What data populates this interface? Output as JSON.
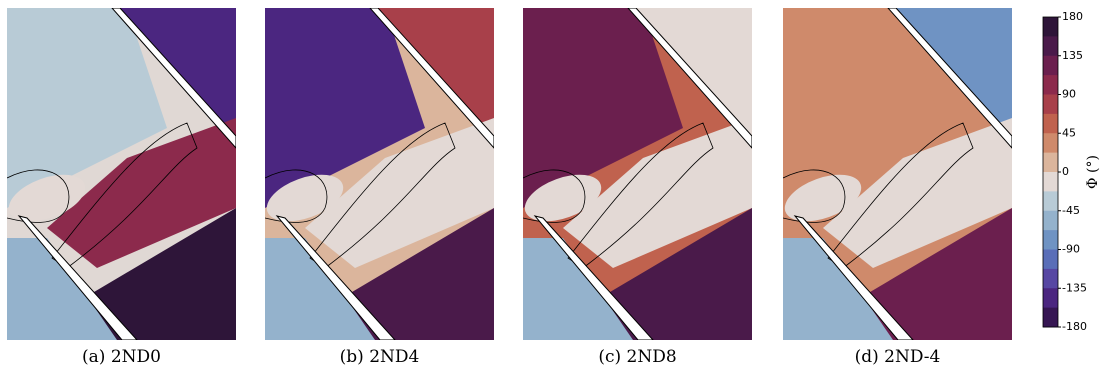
{
  "panels": [
    {
      "caption": "(a) 2ND0"
    },
    {
      "caption": "(b) 2ND4"
    },
    {
      "caption": "(c) 2ND8"
    },
    {
      "caption": "(d) 2ND-4"
    }
  ],
  "colorbar": {
    "label": "Φ (°)",
    "lim": [
      -180,
      180
    ],
    "ticks": [
      180,
      135,
      90,
      45,
      0,
      -45,
      -90,
      -135,
      -180
    ],
    "colors": [
      "#2e1539",
      "#4a1a4a",
      "#6b1f4e",
      "#8c2a4c",
      "#a8404a",
      "#c0624e",
      "#cf8a6b",
      "#dbb59c",
      "#e3d9d5",
      "#b8cbd6",
      "#94b2cc",
      "#6f93c3",
      "#5a6eb8",
      "#5747a3",
      "#4b2680",
      "#361653"
    ]
  }
}
